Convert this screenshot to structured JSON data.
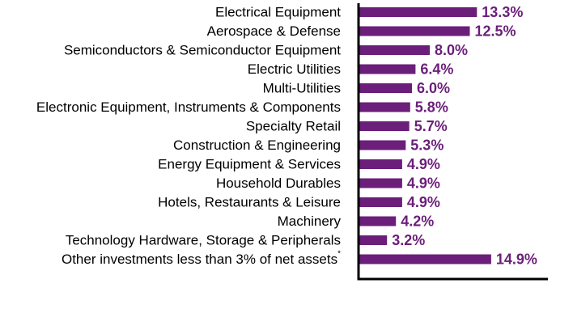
{
  "colors": {
    "bar": "#6b1e7a",
    "value_label": "#6b1e7a",
    "axis": "#000000",
    "category_label": "#000000"
  },
  "chart_data": {
    "type": "bar",
    "orientation": "horizontal",
    "title": "",
    "xlabel": "",
    "ylabel": "",
    "categories": [
      "Electrical Equipment",
      "Aerospace & Defense",
      "Semiconductors & Semiconductor Equipment",
      "Electric Utilities",
      "Multi-Utilities",
      "Electronic Equipment, Instruments & Components",
      "Specialty Retail",
      "Construction & Engineering",
      "Energy Equipment & Services",
      "Household Durables",
      "Hotels, Restaurants & Leisure",
      "Machinery",
      "Technology Hardware, Storage & Peripherals",
      "Other investments less than 3% of net assets"
    ],
    "category_footnote_marks": [
      "",
      "",
      "",
      "",
      "",
      "",
      "",
      "",
      "",
      "",
      "",
      "",
      "",
      "*"
    ],
    "values": [
      13.3,
      12.5,
      8.0,
      6.4,
      6.0,
      5.8,
      5.7,
      5.3,
      4.9,
      4.9,
      4.9,
      4.2,
      3.2,
      14.9
    ],
    "value_labels": [
      "13.3%",
      "12.5%",
      "8.0%",
      "6.4%",
      "6.0%",
      "5.8%",
      "5.7%",
      "5.3%",
      "4.9%",
      "4.9%",
      "4.9%",
      "4.2%",
      "3.2%",
      "14.9%"
    ],
    "xlim": [
      0,
      20
    ],
    "grid": false,
    "legend": "none"
  }
}
